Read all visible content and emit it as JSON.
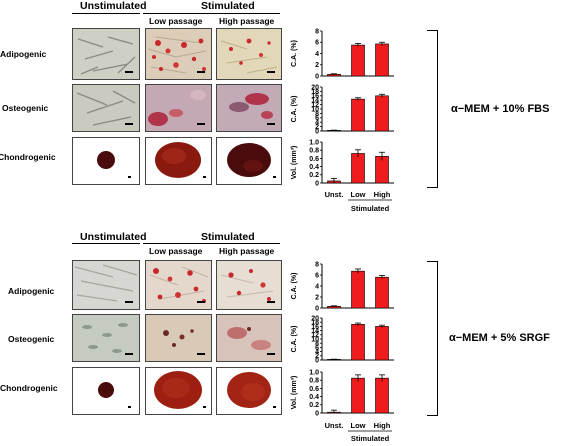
{
  "panels": [
    {
      "col_unstim": "Unstimulated",
      "col_stim": "Stimulated",
      "sub_low": "Low passage",
      "sub_high": "High passage",
      "rows": [
        "Adipogenic",
        "Osteogenic",
        "Chondrogenic"
      ],
      "condition": "α−MEM + 10% FBS",
      "x_labels": [
        "Unst.",
        "Low",
        "High"
      ],
      "x_group": "Stimulated",
      "charts": [
        {
          "type": "bar",
          "categories": [
            "Unst.",
            "Low",
            "High"
          ],
          "values": [
            0.3,
            5.5,
            5.7
          ],
          "errors": [
            0.1,
            0.3,
            0.3
          ],
          "ylabel": "C.A. (%)",
          "ylim": [
            0,
            8
          ],
          "ticks": [
            "0",
            "2",
            "4",
            "6",
            "8"
          ]
        },
        {
          "type": "bar",
          "categories": [
            "Unst.",
            "Low",
            "High"
          ],
          "values": [
            0.3,
            14.5,
            16.0
          ],
          "errors": [
            0.1,
            0.6,
            0.7
          ],
          "ylabel": "C.A. (%)",
          "ylim": [
            0,
            20
          ],
          "ticks": [
            "0",
            "2",
            "4",
            "6",
            "8",
            "10",
            "12",
            "14",
            "16",
            "18",
            "20"
          ]
        },
        {
          "type": "bar",
          "categories": [
            "Unst.",
            "Low",
            "High"
          ],
          "values": [
            0.05,
            0.72,
            0.65
          ],
          "errors": [
            0.06,
            0.09,
            0.1
          ],
          "ylabel": "Vol. (mm³)",
          "ylim": [
            0,
            1.0
          ],
          "ticks": [
            "0",
            "0.2",
            "0.4",
            "0.6",
            "0.8",
            "1.0"
          ]
        }
      ]
    },
    {
      "col_unstim": "Unstimulated",
      "col_stim": "Stimulated",
      "sub_low": "Low passage",
      "sub_high": "High passage",
      "rows": [
        "Adipogenic",
        "Osteogenic",
        "Chondrogenic"
      ],
      "condition": "α−MEM + 5% SRGF",
      "x_labels": [
        "Unst.",
        "Low",
        "High"
      ],
      "x_group": "Stimulated",
      "charts": [
        {
          "type": "bar",
          "categories": [
            "Unst.",
            "Low",
            "High"
          ],
          "values": [
            0.3,
            6.7,
            5.6
          ],
          "errors": [
            0.1,
            0.4,
            0.3
          ],
          "ylabel": "C.A. (%)",
          "ylim": [
            0,
            8
          ],
          "ticks": [
            "0",
            "2",
            "4",
            "6",
            "8"
          ]
        },
        {
          "type": "bar",
          "categories": [
            "Unst.",
            "Low",
            "High"
          ],
          "values": [
            0.3,
            17.0,
            16.0
          ],
          "errors": [
            0.1,
            0.6,
            0.6
          ],
          "ylabel": "C.A. (%)",
          "ylim": [
            0,
            20
          ],
          "ticks": [
            "0",
            "2",
            "4",
            "6",
            "8",
            "10",
            "12",
            "14",
            "16",
            "18",
            "20"
          ]
        },
        {
          "type": "bar",
          "categories": [
            "Unst.",
            "Low",
            "High"
          ],
          "values": [
            0.02,
            0.85,
            0.85
          ],
          "errors": [
            0.05,
            0.08,
            0.08
          ],
          "ylabel": "Vol. (mm³)",
          "ylim": [
            0,
            1.0
          ],
          "ticks": [
            "0",
            "0.2",
            "0.4",
            "0.6",
            "0.8",
            "1.0"
          ]
        }
      ]
    }
  ],
  "colors": {
    "bar": "#ee1c1c",
    "adipo_bg": "#cfd0c4",
    "adipo_stim": "#d8c8b6",
    "oil_red": "#c8282c",
    "osteo_bg": "#cbcabe",
    "osteo_stim": "#c7a7ae",
    "alizarin": "#b0354a",
    "pellet_dark": "#4a0b0c",
    "pellet_red": "#9c1f12"
  }
}
